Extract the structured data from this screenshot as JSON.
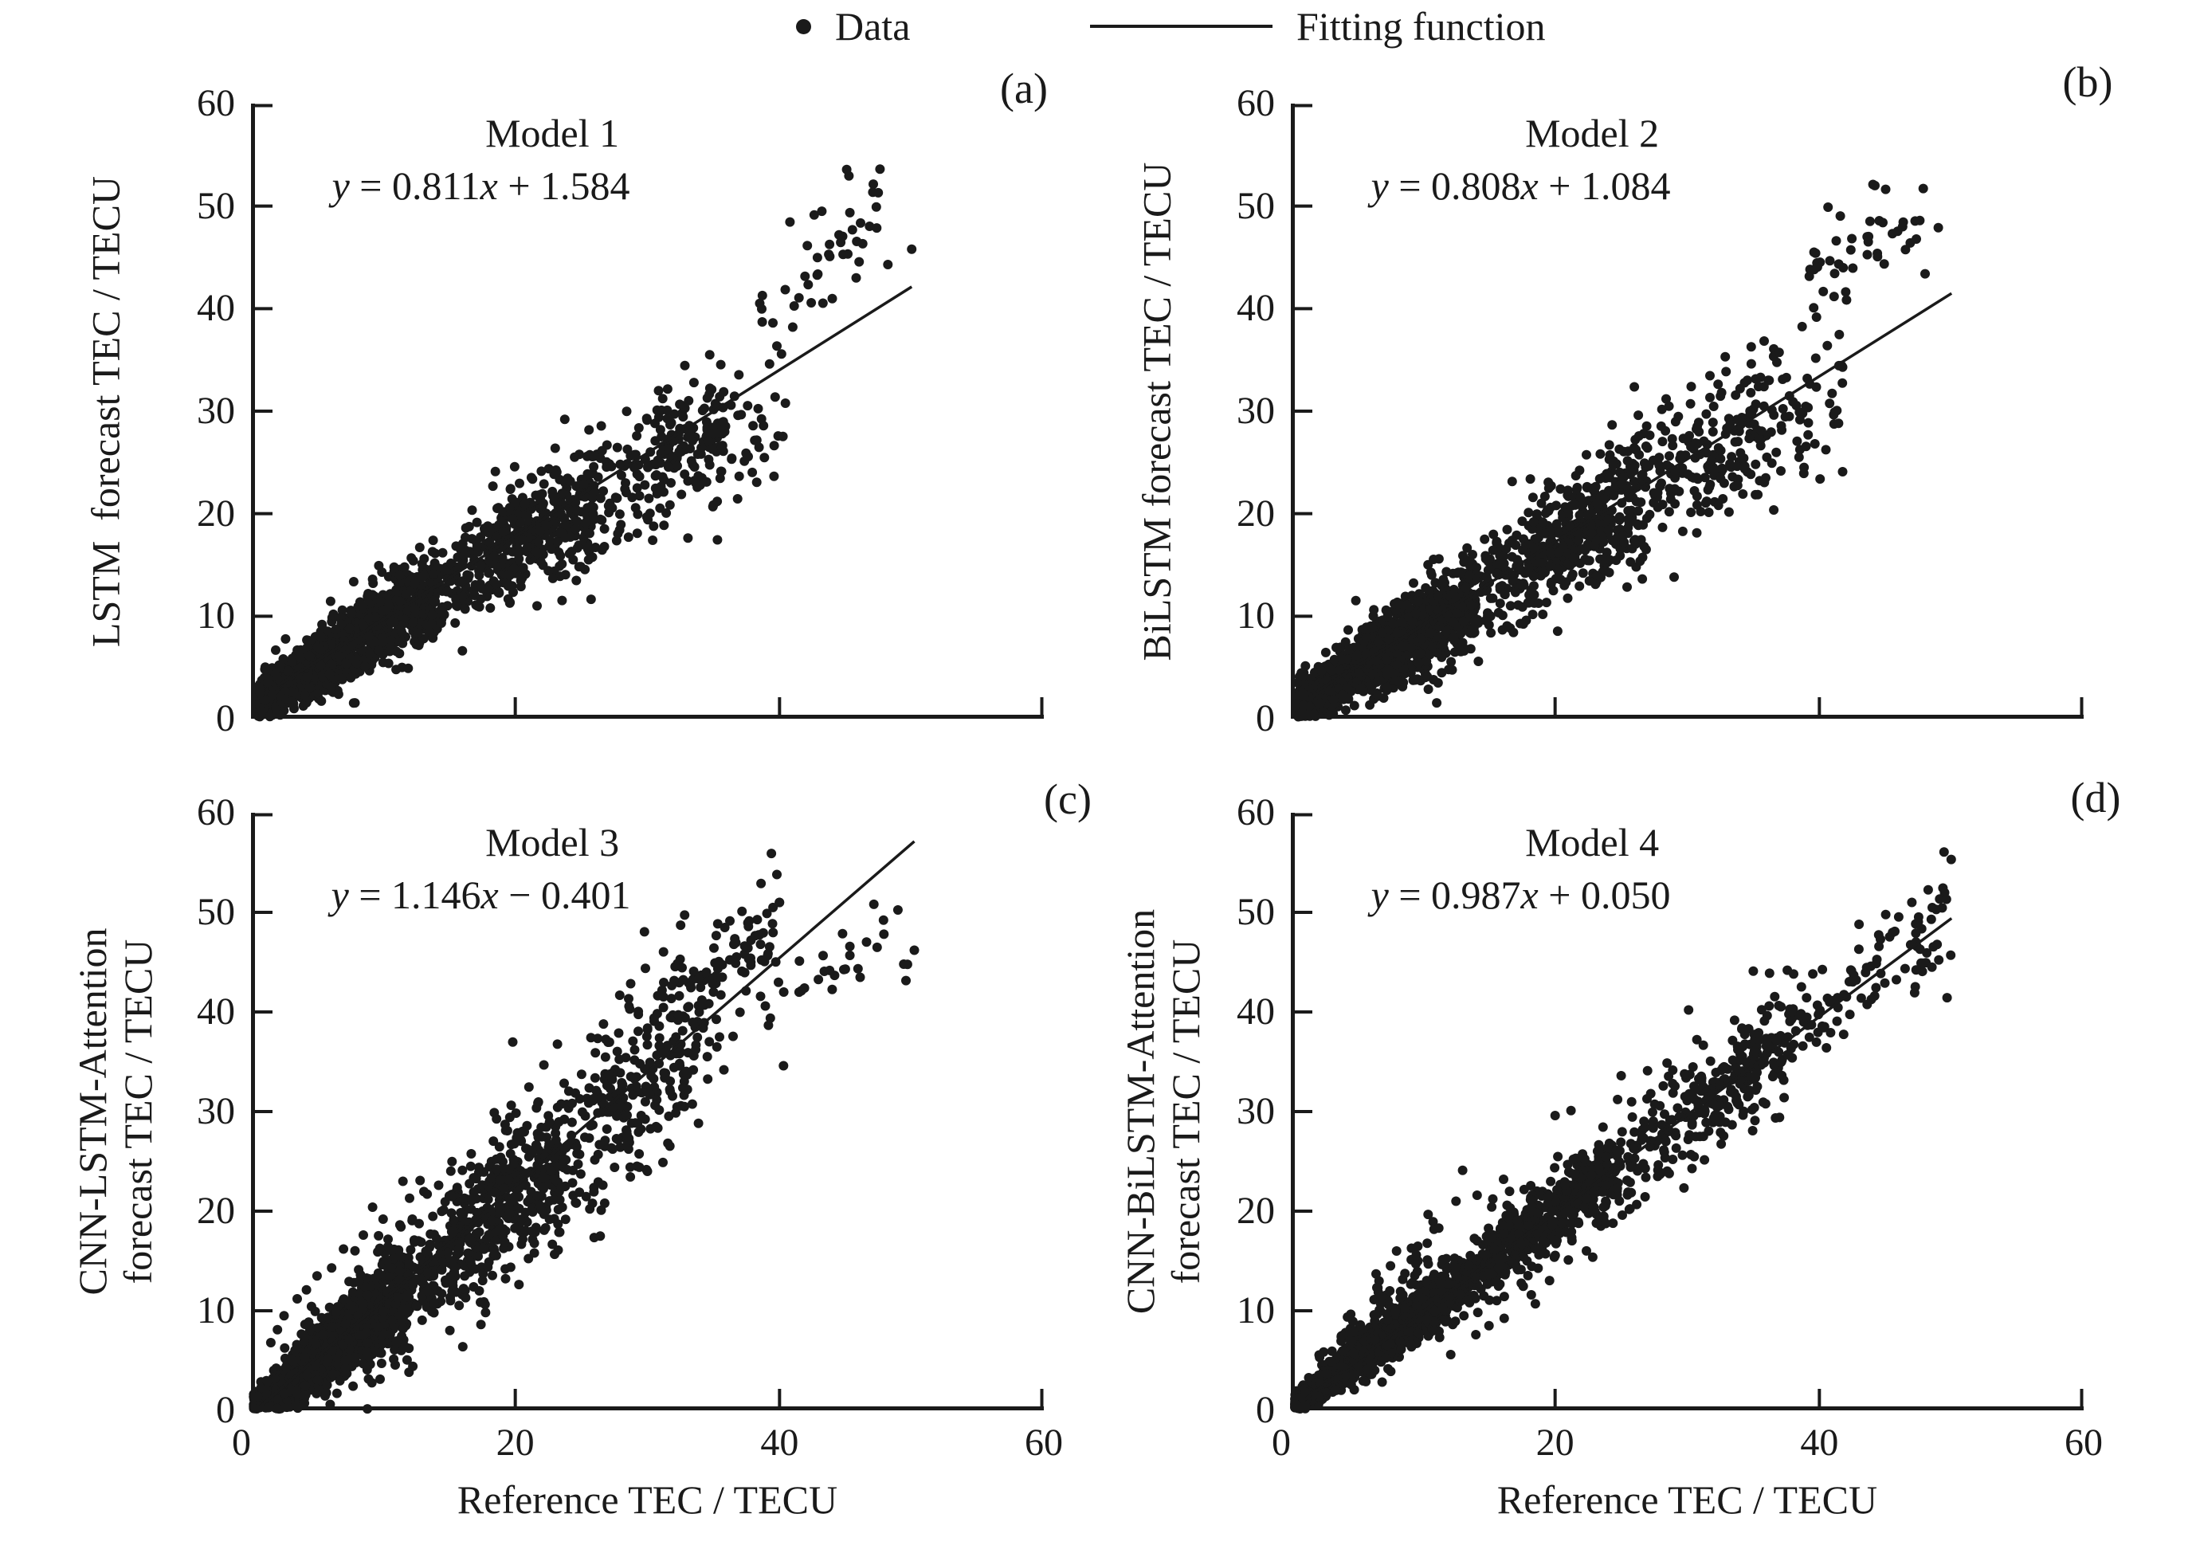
{
  "figure": {
    "background": "#ffffff",
    "ink_color": "#1a1a1a",
    "legend": {
      "data_label": "Data",
      "fit_label": "Fitting function",
      "marker": "filled-dot",
      "line": "solid"
    },
    "x_axis_label": "Reference TEC / TECU",
    "x_tick_labels": [
      "0",
      "20",
      "40",
      "60"
    ],
    "y_tick_labels": [
      "0",
      "10",
      "20",
      "30",
      "40",
      "50",
      "60"
    ]
  },
  "chart_data": [
    {
      "panel_letter": "(a)",
      "type": "scatter",
      "title": "Model 1",
      "equation_text": "y = 0.811x + 1.584",
      "equation_parts": [
        {
          "t": "y",
          "i": 1
        },
        {
          "t": " = 0.811"
        },
        {
          "t": "x",
          "i": 1
        },
        {
          "t": " + 1.584"
        }
      ],
      "ylabel_lines": [
        "LSTM  forecast TEC / TECU"
      ],
      "xlim": [
        0,
        60
      ],
      "ylim": [
        0,
        60
      ],
      "x_ticks": [
        0,
        20,
        40,
        60
      ],
      "y_ticks": [
        0,
        10,
        20,
        30,
        40,
        50,
        60
      ],
      "fit": {
        "slope": 0.811,
        "intercept": 1.584,
        "x_start": 2,
        "x_end": 50
      },
      "seed": 101,
      "clusters": [
        {
          "n": 900,
          "x0": 0.5,
          "x1": 14,
          "pow": 1.3,
          "a": 0.8,
          "b": 1.4,
          "s0": 1.0,
          "s1": 0.1
        },
        {
          "n": 650,
          "x0": 5,
          "x1": 26,
          "pow": 1.2,
          "a": 0.78,
          "b": 1.6,
          "s0": 1.4,
          "s1": 0.06
        },
        {
          "n": 300,
          "x0": 18,
          "x1": 36,
          "pow": 1.1,
          "a": 0.72,
          "b": 2.6,
          "s0": 2.0,
          "s1": 0.04
        },
        {
          "n": 80,
          "x0": 30,
          "x1": 40.5,
          "pow": 1.0,
          "a": 0.7,
          "b": 2.0,
          "s0": 1.6,
          "s1": 0.03
        },
        {
          "n": 40,
          "x0": 38.5,
          "x1": 47.5,
          "pow": 1.0,
          "a": 1.0,
          "b": 1.5,
          "s0": 2.6,
          "s1": 0.0
        }
      ],
      "extra_points": [
        [
          47.6,
          53.6
        ],
        [
          50.0,
          45.8
        ],
        [
          44.5,
          47.2
        ],
        [
          48.2,
          44.3
        ],
        [
          41.0,
          38.2
        ],
        [
          39.5,
          38.6
        ],
        [
          43.2,
          49.5
        ],
        [
          45.8,
          43.0
        ]
      ]
    },
    {
      "panel_letter": "(b)",
      "type": "scatter",
      "title": "Model 2",
      "equation_text": "y = 0.808x + 1.084",
      "equation_parts": [
        {
          "t": "y",
          "i": 1
        },
        {
          "t": " = 0.808"
        },
        {
          "t": "x",
          "i": 1
        },
        {
          "t": " + 1.084"
        }
      ],
      "ylabel_lines": [
        "BiLSTM forecast TEC / TECU"
      ],
      "xlim": [
        0,
        60
      ],
      "ylim": [
        0,
        60
      ],
      "x_ticks": [
        0,
        20,
        40,
        60
      ],
      "y_ticks": [
        0,
        10,
        20,
        30,
        40,
        50,
        60
      ],
      "fit": {
        "slope": 0.808,
        "intercept": 1.084,
        "x_start": 2,
        "x_end": 50
      },
      "seed": 202,
      "clusters": [
        {
          "n": 900,
          "x0": 0.5,
          "x1": 14,
          "pow": 1.3,
          "a": 0.8,
          "b": 0.9,
          "s0": 1.1,
          "s1": 0.1
        },
        {
          "n": 650,
          "x0": 5,
          "x1": 27,
          "pow": 1.2,
          "a": 0.78,
          "b": 1.1,
          "s0": 1.5,
          "s1": 0.07
        },
        {
          "n": 320,
          "x0": 18,
          "x1": 37,
          "pow": 1.1,
          "a": 0.75,
          "b": 1.8,
          "s0": 2.2,
          "s1": 0.05
        },
        {
          "n": 90,
          "x0": 30,
          "x1": 42,
          "pow": 1.0,
          "a": 0.72,
          "b": 1.6,
          "s0": 1.9,
          "s1": 0.04
        },
        {
          "n": 46,
          "x0": 38,
          "x1": 48,
          "pow": 1.0,
          "a": 1.0,
          "b": 2.0,
          "s0": 2.8,
          "s1": 0.0
        }
      ],
      "extra_points": [
        [
          44.2,
          52.0
        ],
        [
          47.6,
          48.6
        ],
        [
          49.0,
          47.9
        ],
        [
          48.0,
          43.4
        ],
        [
          40.6,
          36.4
        ],
        [
          36.2,
          33.0
        ],
        [
          30.3,
          32.4
        ],
        [
          28.4,
          31.2
        ],
        [
          32.6,
          31.8
        ],
        [
          26.3,
          29.6
        ],
        [
          34.0,
          32.2
        ]
      ]
    },
    {
      "panel_letter": "(c)",
      "type": "scatter",
      "title": "Model 3",
      "equation_text": "y = 1.146x − 0.401",
      "equation_parts": [
        {
          "t": "y",
          "i": 1
        },
        {
          "t": " = 1.146"
        },
        {
          "t": "x",
          "i": 1
        },
        {
          "t": " − 0.401"
        }
      ],
      "ylabel_lines": [
        "CNN-LSTM-Attention",
        "forecast TEC / TECU"
      ],
      "xlim": [
        0,
        60
      ],
      "ylim": [
        0,
        60
      ],
      "x_ticks": [
        0,
        20,
        40,
        60
      ],
      "y_ticks": [
        0,
        10,
        20,
        30,
        40,
        50,
        60
      ],
      "fit": {
        "slope": 1.146,
        "intercept": -0.401,
        "x_start": 0.5,
        "x_end": 50.2
      },
      "seed": 303,
      "clusters": [
        {
          "n": 1000,
          "x0": 0.2,
          "x1": 12,
          "pow": 1.4,
          "a": 1.05,
          "b": -0.2,
          "s0": 0.9,
          "s1": 0.14
        },
        {
          "n": 700,
          "x0": 4,
          "x1": 24,
          "pow": 1.2,
          "a": 1.08,
          "b": -0.3,
          "s0": 1.8,
          "s1": 0.1
        },
        {
          "n": 380,
          "x0": 15,
          "x1": 34,
          "pow": 1.1,
          "a": 1.12,
          "b": -0.2,
          "s0": 2.6,
          "s1": 0.08
        },
        {
          "n": 130,
          "x0": 26,
          "x1": 40,
          "pow": 1.0,
          "a": 1.18,
          "b": 0.0,
          "s0": 2.8,
          "s1": 0.05
        },
        {
          "n": 26,
          "x0": 33,
          "x1": 41,
          "pow": 1.0,
          "a": 1.0,
          "b": 10.0,
          "s0": 2.6,
          "s1": 0.0
        },
        {
          "n": 26,
          "x0": 40,
          "x1": 50,
          "pow": 1.0,
          "a": 0.55,
          "b": 19.0,
          "s0": 2.3,
          "s1": 0.0
        }
      ],
      "extra_points": [
        [
          2.5,
          9.5
        ],
        [
          3.5,
          11.2
        ],
        [
          5.0,
          13.5
        ],
        [
          4.2,
          12.1
        ],
        [
          7.0,
          16.2
        ],
        [
          8.5,
          17.6
        ],
        [
          6.1,
          14.3
        ],
        [
          10.0,
          19.2
        ],
        [
          2.0,
          8.1
        ],
        [
          12.0,
          21.3
        ],
        [
          14.2,
          22.6
        ],
        [
          16.0,
          24.1
        ],
        [
          1.5,
          6.8
        ],
        [
          9.2,
          20.4
        ],
        [
          11.5,
          23.0
        ],
        [
          50.2,
          46.2
        ],
        [
          49.4,
          44.8
        ],
        [
          40.3,
          34.6
        ],
        [
          30.0,
          24.0
        ],
        [
          26.5,
          20.1
        ],
        [
          39.8,
          53.8
        ],
        [
          38.6,
          52.9
        ]
      ]
    },
    {
      "panel_letter": "(d)",
      "type": "scatter",
      "title": "Model 4",
      "equation_text": "y = 0.987x + 0.050",
      "equation_parts": [
        {
          "t": "y",
          "i": 1
        },
        {
          "t": " = 0.987"
        },
        {
          "t": "x",
          "i": 1
        },
        {
          "t": " + 0.050"
        }
      ],
      "ylabel_lines": [
        "CNN-BiLSTM-Attention",
        "forecast TEC / TECU"
      ],
      "xlim": [
        0,
        60
      ],
      "ylim": [
        0,
        60
      ],
      "x_ticks": [
        0,
        20,
        40,
        60
      ],
      "y_ticks": [
        0,
        10,
        20,
        30,
        40,
        50,
        60
      ],
      "fit": {
        "slope": 0.987,
        "intercept": 0.05,
        "x_start": 1,
        "x_end": 50
      },
      "seed": 404,
      "clusters": [
        {
          "n": 1100,
          "x0": 0.3,
          "x1": 12,
          "pow": 1.4,
          "a": 0.99,
          "b": 0.1,
          "s0": 0.55,
          "s1": 0.07
        },
        {
          "n": 750,
          "x0": 4,
          "x1": 25,
          "pow": 1.2,
          "a": 0.985,
          "b": 0.1,
          "s0": 0.9,
          "s1": 0.06
        },
        {
          "n": 430,
          "x0": 15,
          "x1": 38,
          "pow": 1.1,
          "a": 0.98,
          "b": 0.2,
          "s0": 1.3,
          "s1": 0.045
        },
        {
          "n": 160,
          "x0": 30,
          "x1": 50,
          "pow": 1.0,
          "a": 0.985,
          "b": 0.1,
          "s0": 1.2,
          "s1": 0.03
        },
        {
          "n": 60,
          "x0": 2,
          "x1": 11,
          "pow": 1.0,
          "a": 1.5,
          "b": 1.0,
          "s0": 1.6,
          "s1": 0.0
        }
      ],
      "extra_points": [
        [
          13.0,
          24.1
        ],
        [
          12.5,
          21.0
        ],
        [
          14.1,
          21.6
        ],
        [
          8.0,
          16.0
        ],
        [
          9.5,
          15.6
        ],
        [
          20.0,
          29.6
        ],
        [
          21.2,
          30.1
        ],
        [
          25.0,
          33.6
        ],
        [
          30.1,
          40.2
        ],
        [
          35.0,
          44.1
        ],
        [
          36.2,
          40.6
        ],
        [
          27.0,
          34.1
        ],
        [
          11.2,
          18.3
        ],
        [
          16.1,
          23.2
        ],
        [
          12.1,
          5.6
        ],
        [
          15.0,
          8.5
        ],
        [
          18.2,
          11.6
        ],
        [
          21.0,
          15.1
        ],
        [
          14.0,
          7.6
        ],
        [
          43.0,
          48.8
        ],
        [
          28.9,
          25.2
        ],
        [
          47.0,
          51.0
        ]
      ]
    }
  ]
}
